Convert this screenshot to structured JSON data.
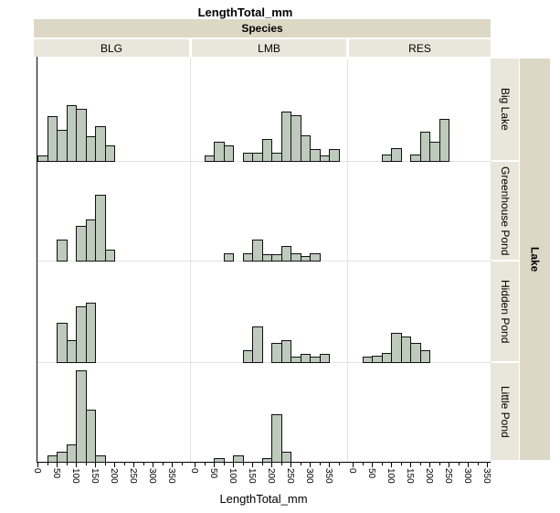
{
  "chart_data": {
    "type": "bar",
    "subtype": "trellis-histograms",
    "title": "LengthTotal_mm",
    "xlabel": "LengthTotal_mm",
    "ylabel": "",
    "y_axis_note": "no y tick labels shown; bar heights are relative (display units)",
    "col_facet": {
      "label": "Species",
      "levels": [
        "BLG",
        "LMB",
        "RES"
      ]
    },
    "row_facet": {
      "label": "Lake",
      "levels": [
        "Big Lake",
        "Greenhouse Pond",
        "Hidden Pond",
        "Little Pond"
      ]
    },
    "x_ticks": [
      "0",
      "50",
      "100",
      "150",
      "200",
      "250",
      "300",
      "350"
    ],
    "x_tick_step_mm": 50,
    "x_minor_step_mm": 25,
    "bin_width_mm": 25,
    "xlim": [
      0,
      390
    ],
    "grid": "row and column separators only",
    "colors": {
      "bar_fill": "#bdcabc",
      "bar_border": "#101010",
      "facet_band_dark": "#dcd8c5",
      "facet_band_light": "#e9e7db",
      "gridline": "#e2e2e2",
      "background": "#ffffff"
    },
    "panels": [
      {
        "row": "Big Lake",
        "col": "BLG",
        "bars": [
          [
            0,
            6
          ],
          [
            25,
            49
          ],
          [
            50,
            34
          ],
          [
            75,
            61
          ],
          [
            100,
            57
          ],
          [
            125,
            27
          ],
          [
            150,
            38
          ],
          [
            175,
            17
          ]
        ]
      },
      {
        "row": "Big Lake",
        "col": "LMB",
        "bars": [
          [
            25,
            6
          ],
          [
            50,
            21
          ],
          [
            75,
            17
          ],
          [
            125,
            9
          ],
          [
            150,
            9
          ],
          [
            175,
            24
          ],
          [
            200,
            9
          ],
          [
            225,
            54
          ],
          [
            250,
            50
          ],
          [
            275,
            28
          ],
          [
            300,
            13
          ],
          [
            325,
            6
          ],
          [
            350,
            13
          ]
        ]
      },
      {
        "row": "Big Lake",
        "col": "RES",
        "bars": [
          [
            75,
            7
          ],
          [
            100,
            14
          ],
          [
            150,
            7
          ],
          [
            175,
            32
          ],
          [
            200,
            21
          ],
          [
            225,
            46
          ]
        ]
      },
      {
        "row": "Greenhouse Pond",
        "col": "BLG",
        "bars": [
          [
            50,
            23
          ],
          [
            100,
            38
          ],
          [
            125,
            45
          ],
          [
            150,
            72
          ],
          [
            175,
            12
          ]
        ]
      },
      {
        "row": "Greenhouse Pond",
        "col": "LMB",
        "bars": [
          [
            75,
            8
          ],
          [
            125,
            8
          ],
          [
            150,
            23
          ],
          [
            175,
            7
          ],
          [
            200,
            7
          ],
          [
            225,
            16
          ],
          [
            250,
            8
          ],
          [
            275,
            5
          ],
          [
            300,
            8
          ]
        ]
      },
      {
        "row": "Greenhouse Pond",
        "col": "RES",
        "bars": []
      },
      {
        "row": "Hidden Pond",
        "col": "BLG",
        "bars": [
          [
            50,
            43
          ],
          [
            75,
            24
          ],
          [
            100,
            61
          ],
          [
            125,
            65
          ]
        ]
      },
      {
        "row": "Hidden Pond",
        "col": "LMB",
        "bars": [
          [
            125,
            13
          ],
          [
            150,
            39
          ],
          [
            200,
            21
          ],
          [
            225,
            24
          ],
          [
            250,
            6
          ],
          [
            275,
            9
          ],
          [
            300,
            6
          ],
          [
            325,
            9
          ]
        ]
      },
      {
        "row": "Hidden Pond",
        "col": "RES",
        "bars": [
          [
            25,
            6
          ],
          [
            50,
            7
          ],
          [
            75,
            10
          ],
          [
            100,
            32
          ],
          [
            125,
            28
          ],
          [
            150,
            21
          ],
          [
            175,
            13
          ]
        ]
      },
      {
        "row": "Little Pond",
        "col": "BLG",
        "bars": [
          [
            25,
            7
          ],
          [
            50,
            11
          ],
          [
            75,
            19
          ],
          [
            100,
            100
          ],
          [
            125,
            57
          ],
          [
            150,
            7
          ]
        ]
      },
      {
        "row": "Little Pond",
        "col": "LMB",
        "bars": [
          [
            50,
            4
          ],
          [
            100,
            7
          ],
          [
            175,
            4
          ],
          [
            200,
            52
          ],
          [
            225,
            11
          ]
        ]
      },
      {
        "row": "Little Pond",
        "col": "RES",
        "bars": []
      }
    ]
  }
}
